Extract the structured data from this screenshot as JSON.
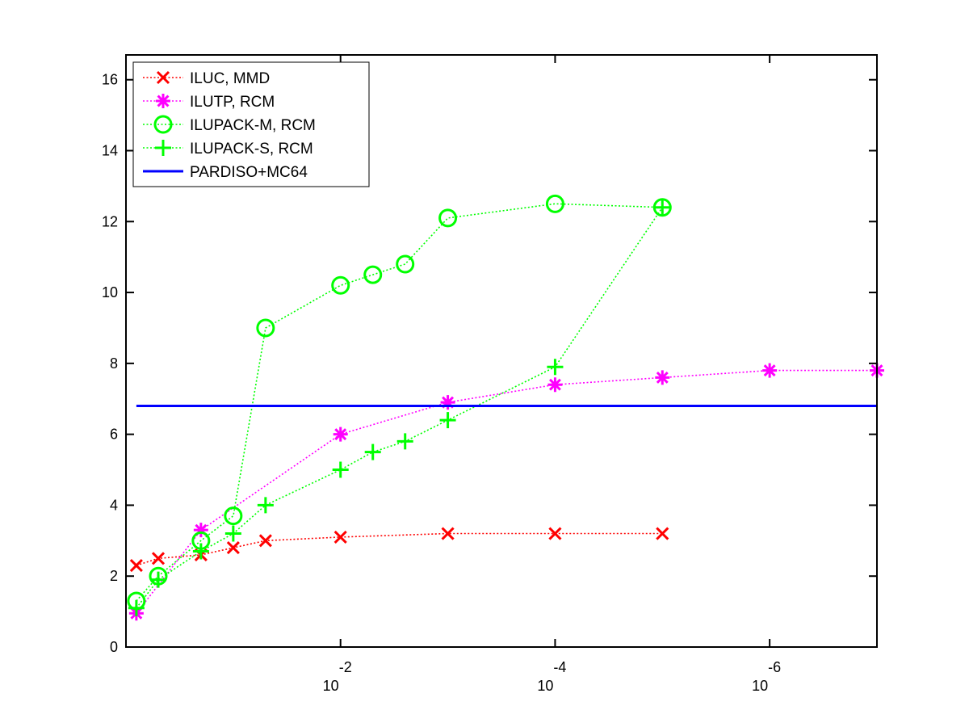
{
  "chart_data": {
    "type": "line",
    "title": "",
    "xlabel": "",
    "ylabel": "",
    "x_scale": "log-reversed",
    "xlim": [
      1,
      1e-07
    ],
    "ylim": [
      0,
      16.7
    ],
    "grid": false,
    "legend_position": "top-left",
    "x_ticks": [
      {
        "value": 0.01,
        "base": "10",
        "exp": "-2"
      },
      {
        "value": 0.0001,
        "base": "10",
        "exp": "-4"
      },
      {
        "value": 1e-06,
        "base": "10",
        "exp": "-6"
      }
    ],
    "y_ticks": [
      "0",
      "2",
      "4",
      "6",
      "8",
      "10",
      "12",
      "14",
      "16"
    ],
    "series": [
      {
        "name": "ILUC, MMD",
        "color": "#ff0000",
        "marker": "x",
        "line": "dotted",
        "x": [
          0.8,
          0.5,
          0.2,
          0.1,
          0.05,
          0.01,
          0.001,
          0.0001,
          1e-05
        ],
        "y": [
          2.3,
          2.5,
          2.6,
          2.8,
          3.0,
          3.1,
          3.2,
          3.2,
          3.2
        ]
      },
      {
        "name": "ILUTP, RCM",
        "color": "#ff00ff",
        "marker": "asterisk",
        "line": "dotted",
        "x": [
          0.8,
          0.2,
          0.01,
          0.001,
          0.0001,
          1e-05,
          1e-06,
          1e-07
        ],
        "y": [
          0.95,
          3.3,
          6.0,
          6.9,
          7.4,
          7.6,
          7.8,
          7.8
        ]
      },
      {
        "name": "ILUPACK-M, RCM",
        "color": "#00ff00",
        "marker": "circle",
        "line": "dotted",
        "x": [
          0.8,
          0.5,
          0.2,
          0.1,
          0.05,
          0.01,
          0.005,
          0.0025,
          0.001,
          0.0001,
          1e-05
        ],
        "y": [
          1.3,
          2.0,
          3.0,
          3.7,
          9.0,
          10.2,
          10.5,
          10.8,
          12.1,
          12.5,
          12.4
        ]
      },
      {
        "name": "ILUPACK-S, RCM",
        "color": "#00ff00",
        "marker": "plus",
        "line": "dotted",
        "x": [
          0.8,
          0.5,
          0.2,
          0.1,
          0.05,
          0.01,
          0.005,
          0.0025,
          0.001,
          0.0001,
          1e-05
        ],
        "y": [
          1.1,
          1.9,
          2.7,
          3.2,
          4.0,
          5.0,
          5.5,
          5.8,
          6.4,
          7.9,
          12.4
        ]
      },
      {
        "name": "PARDISO+MC64",
        "color": "#0000ff",
        "marker": "none",
        "line": "solid",
        "x": [
          0.8,
          1e-07
        ],
        "y": [
          6.8,
          6.8
        ]
      }
    ]
  }
}
